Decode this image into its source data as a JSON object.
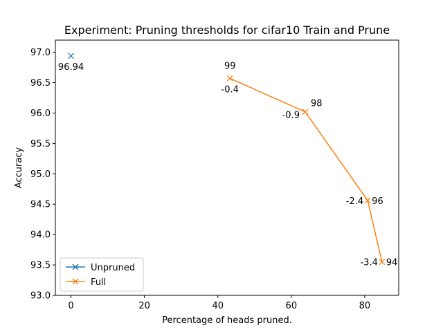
{
  "chart_data": {
    "type": "line",
    "title": "Experiment: Pruning thresholds for cifar10 Train and Prune",
    "xlabel": "Percentage of heads pruned.",
    "ylabel": "Accuracy",
    "xlim": [
      -4.25,
      89.25
    ],
    "ylim": [
      93.0,
      97.2
    ],
    "xticks": [
      0,
      20,
      40,
      60,
      80
    ],
    "yticks": [
      93.0,
      93.5,
      94.0,
      94.5,
      95.0,
      95.5,
      96.0,
      96.5,
      97.0
    ],
    "grid": false,
    "legend_position": "lower-left",
    "series": [
      {
        "name": "Unpruned",
        "color": "#1f77b4",
        "marker": "x",
        "points": [
          {
            "x": 0,
            "y": 96.94
          }
        ],
        "annotations": [
          {
            "text": "96.94",
            "point": 0,
            "position": "below"
          }
        ]
      },
      {
        "name": "Full",
        "color": "#ff7f0e",
        "marker": "x",
        "points": [
          {
            "x": 43.3,
            "y": 96.57
          },
          {
            "x": 63.8,
            "y": 96.02
          },
          {
            "x": 80.8,
            "y": 94.56
          },
          {
            "x": 84.7,
            "y": 93.55
          }
        ],
        "annotations": [
          {
            "text": "99",
            "point": 0,
            "position": "above"
          },
          {
            "text": "-0.4",
            "point": 0,
            "position": "below"
          },
          {
            "text": "98",
            "point": 1,
            "position": "upper-right"
          },
          {
            "text": "-0.9",
            "point": 1,
            "position": "lower-left"
          },
          {
            "text": "96",
            "point": 2,
            "position": "right"
          },
          {
            "text": "-2.4",
            "point": 2,
            "position": "left"
          },
          {
            "text": "94",
            "point": 3,
            "position": "right"
          },
          {
            "text": "-3.4",
            "point": 3,
            "position": "left"
          }
        ]
      }
    ]
  }
}
